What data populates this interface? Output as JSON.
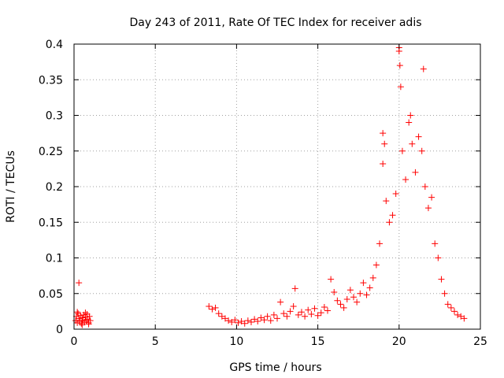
{
  "chart_data": {
    "type": "scatter",
    "title": "Day 243 of 2011, Rate Of TEC Index for receiver adis",
    "xlabel": "GPS time / hours",
    "ylabel": "ROTI / TECUs",
    "xlim": [
      0,
      25
    ],
    "ylim": [
      0,
      0.4
    ],
    "xticks": [
      0,
      5,
      10,
      15,
      20,
      25
    ],
    "yticks": [
      0,
      0.05,
      0.1,
      0.15,
      0.2,
      0.25,
      0.3,
      0.35,
      0.4
    ],
    "ytick_labels": [
      "0",
      "0.05",
      "0.1",
      "0.15",
      "0.2",
      "0.25",
      "0.3",
      "0.35",
      "0.4"
    ],
    "grid": true,
    "marker": "+",
    "color": "#ff0000",
    "series": [
      {
        "name": "ROTI",
        "points": [
          [
            0.3,
            0.065
          ],
          [
            0.1,
            0.012
          ],
          [
            0.15,
            0.018
          ],
          [
            0.2,
            0.009
          ],
          [
            0.25,
            0.022
          ],
          [
            0.3,
            0.015
          ],
          [
            0.35,
            0.011
          ],
          [
            0.4,
            0.019
          ],
          [
            0.45,
            0.008
          ],
          [
            0.5,
            0.016
          ],
          [
            0.55,
            0.013
          ],
          [
            0.6,
            0.02
          ],
          [
            0.65,
            0.01
          ],
          [
            0.7,
            0.017
          ],
          [
            0.75,
            0.012
          ],
          [
            0.8,
            0.021
          ],
          [
            0.85,
            0.014
          ],
          [
            0.9,
            0.009
          ],
          [
            0.95,
            0.018
          ],
          [
            1.0,
            0.012
          ],
          [
            0.2,
            0.024
          ],
          [
            0.5,
            0.006
          ],
          [
            0.7,
            0.023
          ],
          [
            0.9,
            0.007
          ],
          [
            8.3,
            0.032
          ],
          [
            8.5,
            0.028
          ],
          [
            8.7,
            0.03
          ],
          [
            8.9,
            0.022
          ],
          [
            9.1,
            0.018
          ],
          [
            9.3,
            0.015
          ],
          [
            9.5,
            0.012
          ],
          [
            9.7,
            0.01
          ],
          [
            9.9,
            0.013
          ],
          [
            10.1,
            0.009
          ],
          [
            10.3,
            0.011
          ],
          [
            10.5,
            0.008
          ],
          [
            10.7,
            0.012
          ],
          [
            10.9,
            0.01
          ],
          [
            11.1,
            0.014
          ],
          [
            11.3,
            0.011
          ],
          [
            11.5,
            0.016
          ],
          [
            11.7,
            0.013
          ],
          [
            11.9,
            0.018
          ],
          [
            12.1,
            0.012
          ],
          [
            12.3,
            0.02
          ],
          [
            12.5,
            0.015
          ],
          [
            12.7,
            0.038
          ],
          [
            12.9,
            0.022
          ],
          [
            13.1,
            0.018
          ],
          [
            13.3,
            0.025
          ],
          [
            13.5,
            0.032
          ],
          [
            13.6,
            0.057
          ],
          [
            13.8,
            0.02
          ],
          [
            14.0,
            0.024
          ],
          [
            14.2,
            0.018
          ],
          [
            14.4,
            0.027
          ],
          [
            14.6,
            0.021
          ],
          [
            14.8,
            0.029
          ],
          [
            15.0,
            0.019
          ],
          [
            15.2,
            0.023
          ],
          [
            15.4,
            0.031
          ],
          [
            15.6,
            0.026
          ],
          [
            15.8,
            0.07
          ],
          [
            16.0,
            0.052
          ],
          [
            16.2,
            0.04
          ],
          [
            16.4,
            0.035
          ],
          [
            16.6,
            0.03
          ],
          [
            16.8,
            0.042
          ],
          [
            17.0,
            0.055
          ],
          [
            17.2,
            0.045
          ],
          [
            17.4,
            0.038
          ],
          [
            17.6,
            0.05
          ],
          [
            17.8,
            0.065
          ],
          [
            18.0,
            0.048
          ],
          [
            18.2,
            0.058
          ],
          [
            18.4,
            0.072
          ],
          [
            18.6,
            0.09
          ],
          [
            18.8,
            0.12
          ],
          [
            19.0,
            0.275
          ],
          [
            19.0,
            0.232
          ],
          [
            19.1,
            0.26
          ],
          [
            19.2,
            0.18
          ],
          [
            19.4,
            0.15
          ],
          [
            19.6,
            0.16
          ],
          [
            19.8,
            0.19
          ],
          [
            20.0,
            0.395
          ],
          [
            20.0,
            0.39
          ],
          [
            20.05,
            0.37
          ],
          [
            20.1,
            0.34
          ],
          [
            20.2,
            0.25
          ],
          [
            20.4,
            0.21
          ],
          [
            20.6,
            0.29
          ],
          [
            20.7,
            0.3
          ],
          [
            20.8,
            0.26
          ],
          [
            21.0,
            0.22
          ],
          [
            21.2,
            0.27
          ],
          [
            21.4,
            0.25
          ],
          [
            21.5,
            0.365
          ],
          [
            21.6,
            0.2
          ],
          [
            21.8,
            0.17
          ],
          [
            22.0,
            0.185
          ],
          [
            22.2,
            0.12
          ],
          [
            22.4,
            0.1
          ],
          [
            22.6,
            0.07
          ],
          [
            22.8,
            0.05
          ],
          [
            23.0,
            0.035
          ],
          [
            23.2,
            0.03
          ],
          [
            23.4,
            0.025
          ],
          [
            23.6,
            0.02
          ],
          [
            23.8,
            0.018
          ],
          [
            24.0,
            0.015
          ]
        ]
      }
    ]
  }
}
